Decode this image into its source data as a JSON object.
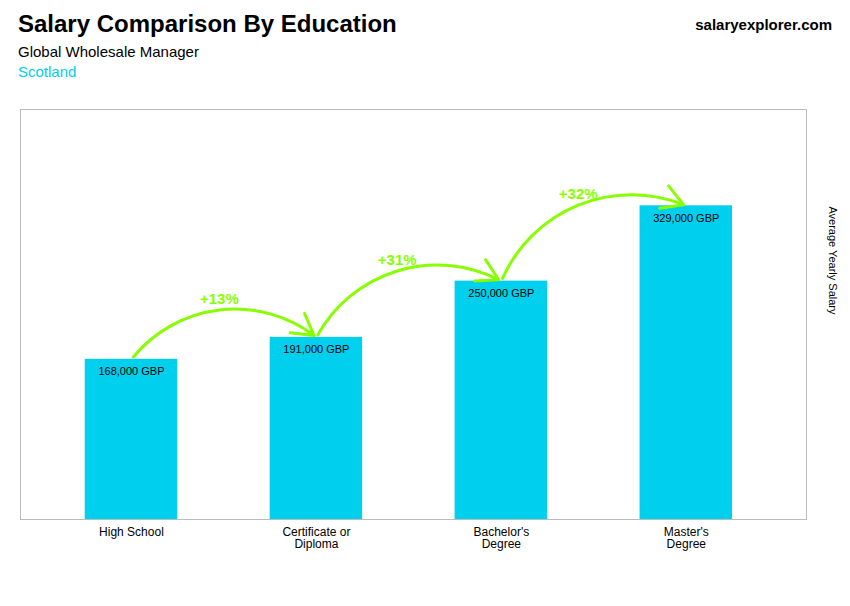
{
  "chart_data": {
    "type": "bar",
    "title": "Salary Comparison By Education",
    "subtitle": "Global Wholesale Manager",
    "ylabel": "Average Yearly Salary",
    "categories": [
      "High School",
      "Certificate or\nDiploma",
      "Bachelor's\nDegree",
      "Master's\nDegree"
    ],
    "values": [
      168000,
      191000,
      250000,
      329000
    ],
    "value_labels": [
      "168,000 GBP",
      "191,000 GBP",
      "250,000 GBP",
      "329,000 GBP"
    ],
    "data_labels": true,
    "color": "#00CFEE",
    "ylim": [
      0,
      430000
    ],
    "yticks": [],
    "tick_labels": "x",
    "grid": false,
    "annotations": [
      {
        "text": "Scotland"
      },
      {
        "text": "salaryexplorer.com"
      },
      {
        "text": "+13%",
        "from": "High School",
        "to": "Certificate or\nDiploma",
        "color": "#88FF00"
      },
      {
        "text": "+31%",
        "from": "Certificate or\nDiploma",
        "to": "Bachelor's\nDegree",
        "color": "#88FF00"
      },
      {
        "text": "+32%",
        "from": "Bachelor's\nDegree",
        "to": "Master's\nDegree",
        "color": "#88FF00"
      }
    ]
  }
}
